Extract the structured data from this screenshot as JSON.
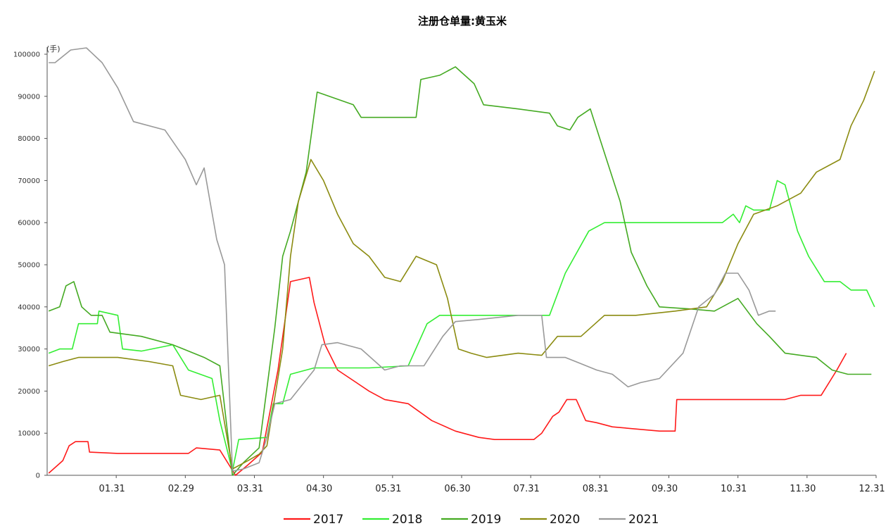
{
  "chart_data": {
    "type": "line",
    "title": "注册仓单量:黄玉米",
    "unit": "(手)",
    "ylim": [
      0,
      100000
    ],
    "y_ticks": [
      0,
      10000,
      20000,
      30000,
      40000,
      50000,
      60000,
      70000,
      80000,
      90000,
      100000
    ],
    "x_ticks": [
      "01.31",
      "02.29",
      "03.31",
      "04.30",
      "05.31",
      "06.30",
      "07.31",
      "08.31",
      "09.30",
      "10.31",
      "11.30",
      "12.31"
    ],
    "grid": false,
    "legend_position": "bottom",
    "series": [
      {
        "name": "2017",
        "color": "#ff1a1a",
        "points": [
          [
            1,
            500
          ],
          [
            10,
            3500
          ],
          [
            14,
            7000
          ],
          [
            18,
            8000
          ],
          [
            26,
            8000
          ],
          [
            27,
            5500
          ],
          [
            45,
            5200
          ],
          [
            90,
            5200
          ],
          [
            95,
            6500
          ],
          [
            110,
            6000
          ],
          [
            120,
            0
          ],
          [
            128,
            2500
          ],
          [
            137,
            5500
          ],
          [
            147,
            25000
          ],
          [
            155,
            46000
          ],
          [
            167,
            47000
          ],
          [
            170,
            41000
          ],
          [
            177,
            31000
          ],
          [
            185,
            25000
          ],
          [
            205,
            20000
          ],
          [
            215,
            18000
          ],
          [
            230,
            17000
          ],
          [
            245,
            13000
          ],
          [
            260,
            10500
          ],
          [
            275,
            9000
          ],
          [
            285,
            8500
          ],
          [
            310,
            8500
          ],
          [
            315,
            10000
          ],
          [
            322,
            14000
          ],
          [
            326,
            15000
          ],
          [
            331,
            18000
          ],
          [
            337,
            18000
          ],
          [
            343,
            13000
          ],
          [
            350,
            12500
          ],
          [
            360,
            11500
          ],
          [
            390,
            10500
          ],
          [
            400,
            10500
          ],
          [
            401,
            18000
          ],
          [
            470,
            18000
          ],
          [
            480,
            19000
          ],
          [
            493,
            19000
          ],
          [
            503,
            25000
          ],
          [
            509,
            29000
          ]
        ]
      },
      {
        "name": "2018",
        "color": "#33ee33",
        "points": [
          [
            1,
            29000
          ],
          [
            8,
            30000
          ],
          [
            16,
            30000
          ],
          [
            20,
            36000
          ],
          [
            32,
            36000
          ],
          [
            33,
            39000
          ],
          [
            45,
            38000
          ],
          [
            48,
            30000
          ],
          [
            60,
            29500
          ],
          [
            80,
            31000
          ],
          [
            90,
            25000
          ],
          [
            105,
            23000
          ],
          [
            110,
            13000
          ],
          [
            118,
            1000
          ],
          [
            122,
            8500
          ],
          [
            140,
            9000
          ],
          [
            144,
            17000
          ],
          [
            150,
            17000
          ],
          [
            155,
            24000
          ],
          [
            170,
            25500
          ],
          [
            205,
            25500
          ],
          [
            230,
            26000
          ],
          [
            242,
            36000
          ],
          [
            250,
            38000
          ],
          [
            300,
            38000
          ],
          [
            320,
            38000
          ],
          [
            330,
            48000
          ],
          [
            345,
            58000
          ],
          [
            355,
            60000
          ],
          [
            390,
            60000
          ],
          [
            430,
            60000
          ],
          [
            437,
            62000
          ],
          [
            441,
            60000
          ],
          [
            445,
            64000
          ],
          [
            450,
            63000
          ],
          [
            460,
            63000
          ],
          [
            465,
            70000
          ],
          [
            470,
            69000
          ],
          [
            478,
            58000
          ],
          [
            485,
            52000
          ],
          [
            495,
            46000
          ],
          [
            505,
            46000
          ],
          [
            512,
            44000
          ],
          [
            522,
            44000
          ],
          [
            527,
            40000
          ]
        ]
      },
      {
        "name": "2019",
        "color": "#44aa22",
        "points": [
          [
            1,
            39000
          ],
          [
            8,
            40000
          ],
          [
            12,
            45000
          ],
          [
            17,
            46000
          ],
          [
            22,
            40000
          ],
          [
            28,
            38000
          ],
          [
            35,
            38000
          ],
          [
            40,
            34000
          ],
          [
            60,
            33000
          ],
          [
            80,
            31000
          ],
          [
            100,
            28000
          ],
          [
            110,
            26000
          ],
          [
            118,
            0
          ],
          [
            125,
            3000
          ],
          [
            135,
            6500
          ],
          [
            145,
            35000
          ],
          [
            150,
            52000
          ],
          [
            155,
            58000
          ],
          [
            165,
            72000
          ],
          [
            172,
            91000
          ],
          [
            195,
            88000
          ],
          [
            200,
            85000
          ],
          [
            215,
            85000
          ],
          [
            235,
            85000
          ],
          [
            238,
            94000
          ],
          [
            250,
            95000
          ],
          [
            260,
            97000
          ],
          [
            272,
            93000
          ],
          [
            278,
            88000
          ],
          [
            300,
            87000
          ],
          [
            320,
            86000
          ],
          [
            325,
            83000
          ],
          [
            333,
            82000
          ],
          [
            338,
            85000
          ],
          [
            346,
            87000
          ],
          [
            352,
            80000
          ],
          [
            365,
            65000
          ],
          [
            372,
            53000
          ],
          [
            382,
            45000
          ],
          [
            390,
            40000
          ],
          [
            410,
            39500
          ],
          [
            425,
            39000
          ],
          [
            440,
            42000
          ],
          [
            452,
            36000
          ],
          [
            460,
            33000
          ],
          [
            470,
            29000
          ],
          [
            490,
            28000
          ],
          [
            500,
            25000
          ],
          [
            510,
            24000
          ],
          [
            525,
            24000
          ]
        ]
      },
      {
        "name": "2020",
        "color": "#8b8b10",
        "points": [
          [
            1,
            26000
          ],
          [
            10,
            27000
          ],
          [
            20,
            28000
          ],
          [
            45,
            28000
          ],
          [
            65,
            27000
          ],
          [
            80,
            26000
          ],
          [
            85,
            19000
          ],
          [
            98,
            18000
          ],
          [
            110,
            19000
          ],
          [
            118,
            1500
          ],
          [
            128,
            3500
          ],
          [
            135,
            5000
          ],
          [
            140,
            7000
          ],
          [
            150,
            30000
          ],
          [
            155,
            52000
          ],
          [
            160,
            65000
          ],
          [
            168,
            75000
          ],
          [
            176,
            70000
          ],
          [
            185,
            62000
          ],
          [
            195,
            55000
          ],
          [
            205,
            52000
          ],
          [
            215,
            47000
          ],
          [
            225,
            46000
          ],
          [
            235,
            52000
          ],
          [
            248,
            50000
          ],
          [
            255,
            42000
          ],
          [
            262,
            30000
          ],
          [
            270,
            29000
          ],
          [
            280,
            28000
          ],
          [
            300,
            29000
          ],
          [
            315,
            28500
          ],
          [
            325,
            33000
          ],
          [
            340,
            33000
          ],
          [
            355,
            38000
          ],
          [
            375,
            38000
          ],
          [
            400,
            39000
          ],
          [
            420,
            40000
          ],
          [
            430,
            46000
          ],
          [
            440,
            55000
          ],
          [
            450,
            62000
          ],
          [
            465,
            64000
          ],
          [
            480,
            67000
          ],
          [
            490,
            72000
          ],
          [
            505,
            75000
          ],
          [
            512,
            83000
          ],
          [
            520,
            89000
          ],
          [
            527,
            96000
          ]
        ]
      },
      {
        "name": "2021",
        "color": "#999999",
        "points": [
          [
            1,
            98000
          ],
          [
            5,
            98000
          ],
          [
            15,
            101000
          ],
          [
            25,
            101500
          ],
          [
            35,
            98000
          ],
          [
            45,
            92000
          ],
          [
            55,
            84000
          ],
          [
            75,
            82000
          ],
          [
            88,
            75000
          ],
          [
            95,
            69000
          ],
          [
            100,
            73000
          ],
          [
            108,
            56000
          ],
          [
            113,
            50000
          ],
          [
            118,
            1000
          ],
          [
            125,
            1500
          ],
          [
            135,
            3000
          ],
          [
            140,
            9000
          ],
          [
            145,
            17000
          ],
          [
            155,
            18000
          ],
          [
            170,
            25000
          ],
          [
            175,
            31000
          ],
          [
            185,
            31500
          ],
          [
            200,
            30000
          ],
          [
            215,
            25000
          ],
          [
            225,
            26000
          ],
          [
            240,
            26000
          ],
          [
            252,
            33000
          ],
          [
            260,
            36500
          ],
          [
            275,
            37000
          ],
          [
            300,
            38000
          ],
          [
            315,
            38000
          ],
          [
            318,
            28000
          ],
          [
            330,
            28000
          ],
          [
            340,
            26500
          ],
          [
            350,
            25000
          ],
          [
            360,
            24000
          ],
          [
            370,
            21000
          ],
          [
            378,
            22000
          ],
          [
            390,
            23000
          ],
          [
            405,
            29000
          ],
          [
            415,
            40000
          ],
          [
            425,
            43000
          ],
          [
            432,
            48000
          ],
          [
            440,
            48000
          ],
          [
            447,
            44000
          ],
          [
            453,
            38000
          ],
          [
            460,
            39000
          ],
          [
            464,
            39000
          ]
        ]
      }
    ]
  }
}
